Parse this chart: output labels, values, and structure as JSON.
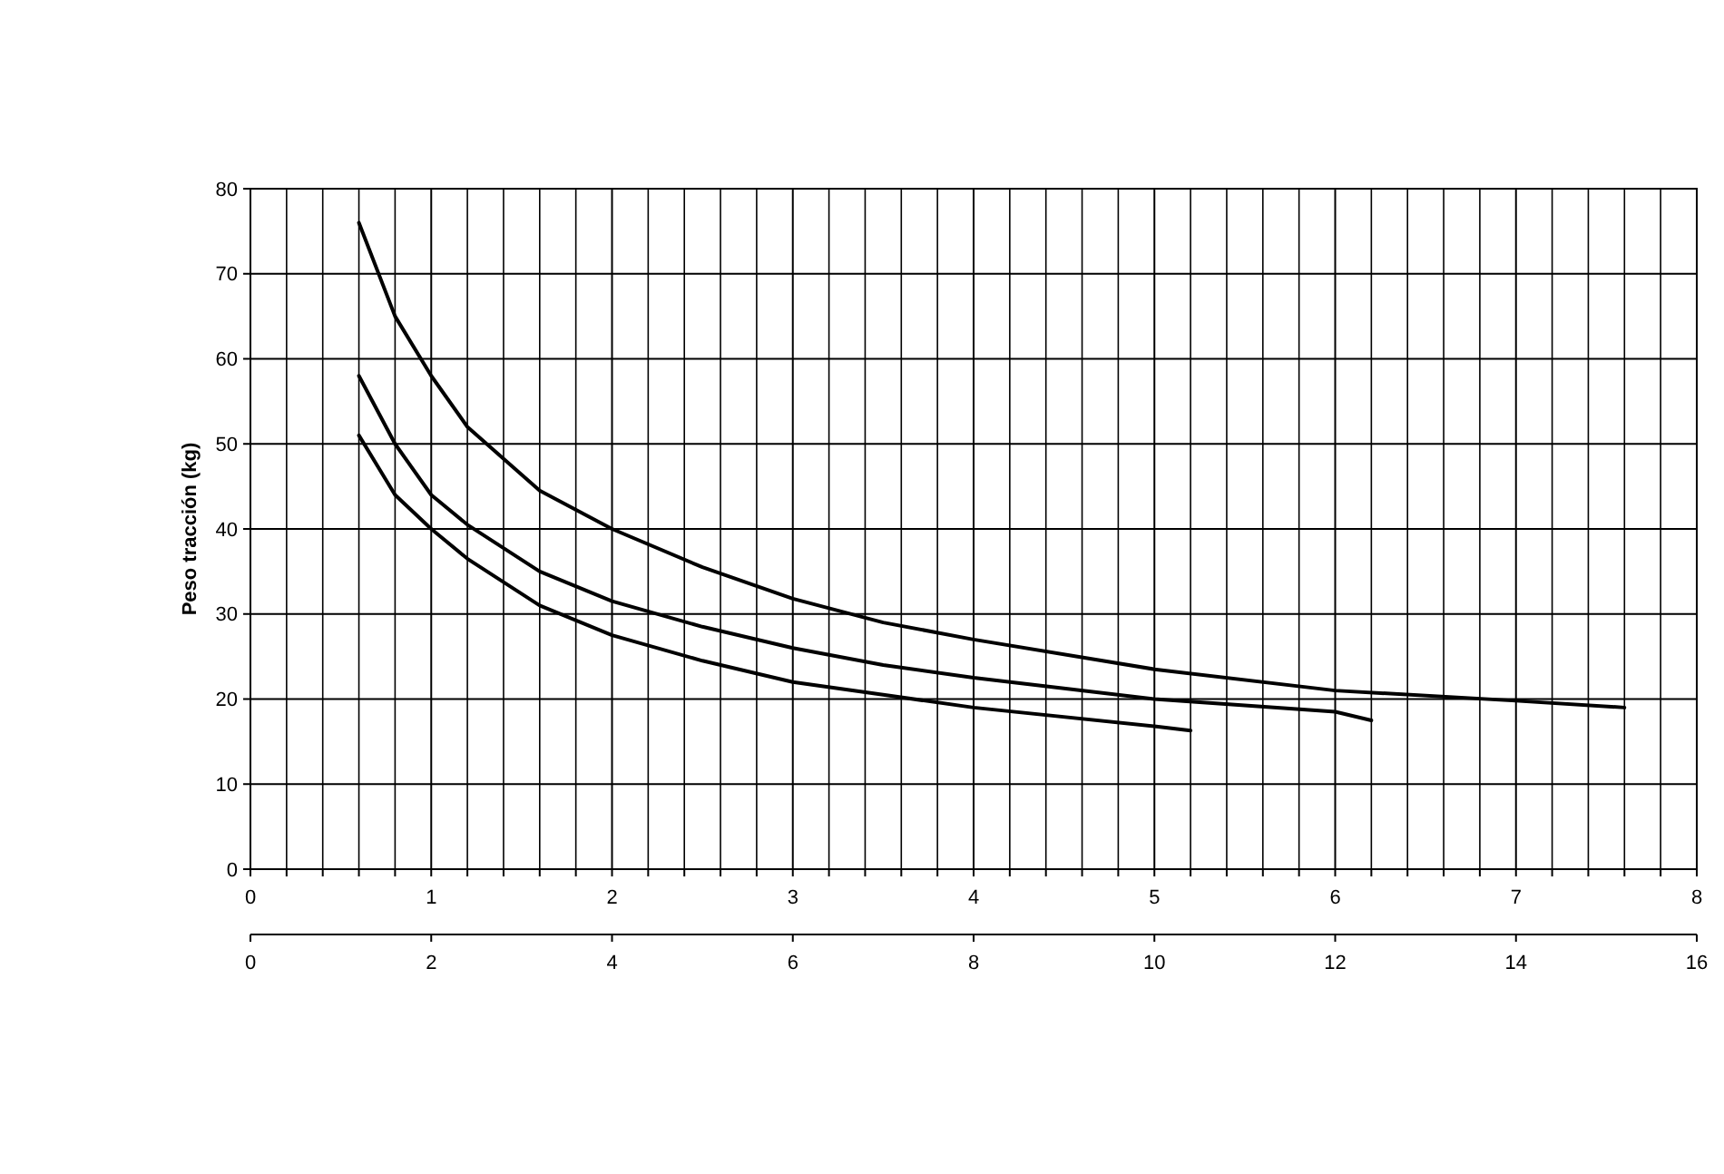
{
  "chart_data": {
    "type": "line",
    "ylabel": "Peso tracción (kg)",
    "xlim": [
      0,
      8
    ],
    "ylim": [
      0,
      80
    ],
    "xticks": [
      0,
      {
        "value": 0.2,
        "label": null
      },
      {
        "value": 0.4,
        "label": null
      },
      {
        "value": 0.6,
        "label": null
      },
      {
        "value": 0.8,
        "label": null
      },
      1,
      {
        "value": 1.2,
        "label": null
      },
      {
        "value": 1.4,
        "label": null
      },
      {
        "value": 1.6,
        "label": null
      },
      {
        "value": 1.8,
        "label": null
      },
      2,
      {
        "value": 2.2,
        "label": null
      },
      {
        "value": 2.4,
        "label": null
      },
      {
        "value": 2.6,
        "label": null
      },
      {
        "value": 2.8,
        "label": null
      },
      3,
      {
        "value": 3.2,
        "label": null
      },
      {
        "value": 3.4,
        "label": null
      },
      {
        "value": 3.6,
        "label": null
      },
      {
        "value": 3.8,
        "label": null
      },
      4,
      {
        "value": 4.2,
        "label": null
      },
      {
        "value": 4.4,
        "label": null
      },
      {
        "value": 4.6,
        "label": null
      },
      {
        "value": 4.8,
        "label": null
      },
      5,
      {
        "value": 5.2,
        "label": null
      },
      {
        "value": 5.4,
        "label": null
      },
      {
        "value": 5.6,
        "label": null
      },
      {
        "value": 5.8,
        "label": null
      },
      6,
      {
        "value": 6.2,
        "label": null
      },
      {
        "value": 6.4,
        "label": null
      },
      {
        "value": 6.6,
        "label": null
      },
      {
        "value": 6.8,
        "label": null
      },
      7,
      {
        "value": 7.2,
        "label": null
      },
      {
        "value": 7.4,
        "label": null
      },
      {
        "value": 7.6,
        "label": null
      },
      {
        "value": 7.8,
        "label": null
      },
      8
    ],
    "yticks": [
      0,
      10,
      20,
      30,
      40,
      50,
      60,
      70,
      80
    ],
    "x2lim": [
      0,
      16
    ],
    "x2ticks": [
      0,
      2,
      4,
      6,
      8,
      10,
      12,
      14,
      16
    ],
    "grid": true,
    "marker": "none",
    "line_style": "solid",
    "series": [
      {
        "color": "#000000",
        "x": [
          0.6,
          0.8,
          1,
          1.2,
          1.6,
          2,
          2.5,
          3,
          3.5,
          4,
          5,
          6,
          7,
          7.6
        ],
        "values": [
          76,
          65,
          58,
          52,
          44.5,
          40,
          35.5,
          31.8,
          29,
          27,
          23.5,
          21,
          19.8,
          19
        ]
      },
      {
        "color": "#000000",
        "x": [
          0.6,
          0.8,
          1,
          1.2,
          1.6,
          2,
          2.5,
          3,
          3.5,
          4,
          5,
          6,
          6.2
        ],
        "values": [
          58,
          50,
          44,
          40.5,
          35,
          31.5,
          28.5,
          26,
          24,
          22.5,
          20,
          18.5,
          17.5
        ]
      },
      {
        "color": "#000000",
        "x": [
          0.6,
          0.8,
          1,
          1.2,
          1.6,
          2,
          2.5,
          3,
          3.5,
          4,
          5,
          5.2
        ],
        "values": [
          51,
          44,
          40,
          36.5,
          31,
          27.5,
          24.5,
          22,
          20.5,
          19,
          16.8,
          16.3
        ]
      }
    ]
  }
}
